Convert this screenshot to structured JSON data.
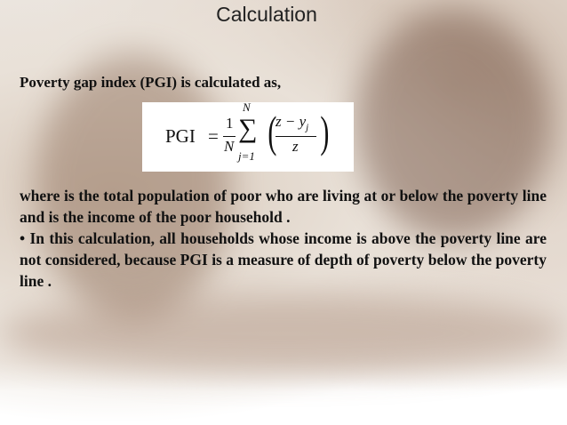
{
  "title": "Calculation",
  "intro": "Poverty gap index (PGI) is calculated as,",
  "formula": {
    "lhs": "PGI",
    "equals": "=",
    "fraction_numerator": "1",
    "fraction_denominator": "N",
    "sum_upper": "N",
    "sum_symbol": "∑",
    "sum_lower": "j=1",
    "inner_numerator": "z − y",
    "subscript": "j",
    "inner_denominator": "z"
  },
  "paragraphs": [
    " where is the total population of poor who  are living at or below the poverty line and is the income of the poor household .",
    "• In this calculation, all households whose income is above the poverty line are not considered, because PGI is a measure of depth of poverty below the poverty line ."
  ]
}
